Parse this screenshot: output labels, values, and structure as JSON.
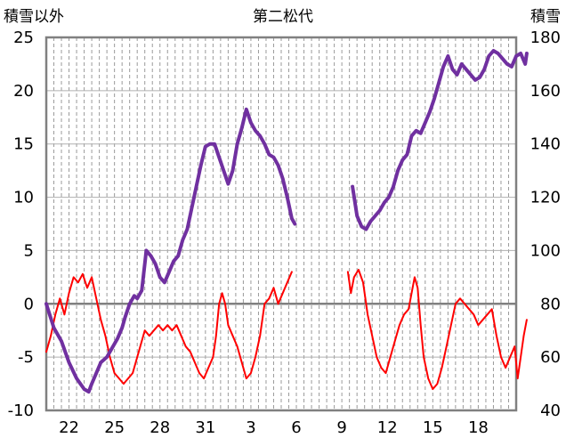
{
  "chart_data": {
    "type": "line",
    "title": "第二松代",
    "ylabel_left": "積雪以外",
    "ylabel_right": "積雪",
    "left_ylim": [
      -10,
      25
    ],
    "right_ylim": [
      40,
      180
    ],
    "left_ticks": [
      "25",
      "20",
      "15",
      "10",
      "5",
      "0",
      "-5",
      "-10"
    ],
    "right_ticks": [
      "180",
      "160",
      "140",
      "120",
      "100",
      "80",
      "60",
      "40"
    ],
    "x_day_range": [
      0,
      31
    ],
    "x_tick_labels": [
      "22",
      "25",
      "28",
      "31",
      "3",
      "6",
      "9",
      "12",
      "15",
      "18"
    ],
    "x_tick_days": [
      1.5,
      4.5,
      7.5,
      10.5,
      13.5,
      16.5,
      19.5,
      22.5,
      25.5,
      28.5
    ],
    "grid": "vertical dashed every 12 hours, horizontal solid at left-axis ticks",
    "colors": {
      "snow_depth": "#7030A0",
      "other": "#FF0000",
      "zero_line": "#808080"
    },
    "series": [
      {
        "axis": "right",
        "color": "#7030A0",
        "points": [
          [
            0.0,
            80
          ],
          [
            0.5,
            71
          ],
          [
            1.0,
            66
          ],
          [
            1.5,
            58
          ],
          [
            2.0,
            52
          ],
          [
            2.5,
            48
          ],
          [
            2.8,
            47
          ],
          [
            3.0,
            50
          ],
          [
            3.3,
            54
          ],
          [
            3.6,
            58
          ],
          [
            4.0,
            60
          ],
          [
            4.3,
            63
          ],
          [
            4.7,
            67
          ],
          [
            5.0,
            71
          ],
          [
            5.2,
            75
          ],
          [
            5.5,
            80
          ],
          [
            5.8,
            83
          ],
          [
            6.0,
            82
          ],
          [
            6.3,
            85
          ],
          [
            6.6,
            100
          ],
          [
            6.9,
            98
          ],
          [
            7.2,
            95
          ],
          [
            7.5,
            90
          ],
          [
            7.8,
            88
          ],
          [
            8.1,
            92
          ],
          [
            8.4,
            96
          ],
          [
            8.7,
            98
          ],
          [
            9.0,
            104
          ],
          [
            9.3,
            108
          ],
          [
            9.6,
            116
          ],
          [
            9.9,
            124
          ],
          [
            10.2,
            132
          ],
          [
            10.5,
            139
          ],
          [
            10.8,
            140
          ],
          [
            11.1,
            140
          ],
          [
            11.4,
            135
          ],
          [
            11.7,
            130
          ],
          [
            12.0,
            125
          ],
          [
            12.3,
            130
          ],
          [
            12.6,
            140
          ],
          [
            12.9,
            146
          ],
          [
            13.2,
            153
          ],
          [
            13.5,
            148
          ],
          [
            13.8,
            145
          ],
          [
            14.1,
            143
          ],
          [
            14.4,
            140
          ],
          [
            14.7,
            136
          ],
          [
            15.0,
            135
          ],
          [
            15.3,
            132
          ],
          [
            15.6,
            127
          ],
          [
            15.9,
            120
          ],
          [
            16.2,
            112
          ],
          [
            16.4,
            110
          ]
        ]
      },
      {
        "axis": "right",
        "color": "#7030A0",
        "points": [
          [
            20.2,
            124
          ],
          [
            20.5,
            113
          ],
          [
            20.8,
            109
          ],
          [
            21.1,
            108
          ],
          [
            21.4,
            111
          ],
          [
            21.7,
            113
          ],
          [
            22.0,
            115
          ],
          [
            22.3,
            118
          ],
          [
            22.6,
            120
          ],
          [
            22.9,
            124
          ],
          [
            23.2,
            130
          ],
          [
            23.5,
            134
          ],
          [
            23.8,
            136
          ],
          [
            24.1,
            143
          ],
          [
            24.4,
            145
          ],
          [
            24.7,
            144
          ],
          [
            25.0,
            148
          ],
          [
            25.3,
            152
          ],
          [
            25.6,
            157
          ],
          [
            25.9,
            163
          ],
          [
            26.2,
            169
          ],
          [
            26.5,
            173
          ],
          [
            26.8,
            168
          ],
          [
            27.1,
            166
          ],
          [
            27.4,
            170
          ],
          [
            27.7,
            168
          ],
          [
            28.0,
            166
          ],
          [
            28.3,
            164
          ],
          [
            28.6,
            165
          ],
          [
            28.9,
            168
          ],
          [
            29.2,
            173
          ],
          [
            29.5,
            175
          ],
          [
            29.8,
            174
          ],
          [
            30.1,
            172
          ],
          [
            30.4,
            170
          ],
          [
            30.7,
            169
          ],
          [
            31.0,
            173
          ],
          [
            31.3,
            174
          ],
          [
            31.6,
            170
          ],
          [
            31.7,
            174
          ]
        ]
      },
      {
        "axis": "left",
        "color": "#FF0000",
        "points": [
          [
            0.0,
            -4.5
          ],
          [
            0.3,
            -3
          ],
          [
            0.6,
            -1
          ],
          [
            0.9,
            0.5
          ],
          [
            1.2,
            -1
          ],
          [
            1.5,
            1
          ],
          [
            1.8,
            2.5
          ],
          [
            2.1,
            2
          ],
          [
            2.4,
            2.8
          ],
          [
            2.7,
            1.5
          ],
          [
            3.0,
            2.5
          ],
          [
            3.3,
            0.5
          ],
          [
            3.6,
            -1.5
          ],
          [
            3.9,
            -3
          ],
          [
            4.2,
            -5
          ],
          [
            4.5,
            -6.5
          ],
          [
            4.8,
            -7
          ],
          [
            5.1,
            -7.5
          ],
          [
            5.4,
            -7
          ],
          [
            5.7,
            -6.5
          ],
          [
            6.0,
            -5
          ],
          [
            6.2,
            -4
          ],
          [
            6.5,
            -2.5
          ],
          [
            6.8,
            -3
          ],
          [
            7.1,
            -2.5
          ],
          [
            7.4,
            -2
          ],
          [
            7.7,
            -2.5
          ],
          [
            8.0,
            -2
          ],
          [
            8.3,
            -2.5
          ],
          [
            8.6,
            -2
          ],
          [
            8.9,
            -3
          ],
          [
            9.2,
            -4
          ],
          [
            9.5,
            -4.5
          ],
          [
            9.8,
            -5.5
          ],
          [
            10.1,
            -6.5
          ],
          [
            10.4,
            -7
          ],
          [
            10.7,
            -6
          ],
          [
            11.0,
            -5
          ],
          [
            11.2,
            -3
          ],
          [
            11.4,
            0
          ],
          [
            11.6,
            1
          ],
          [
            11.8,
            0
          ],
          [
            12.0,
            -2
          ],
          [
            12.3,
            -3
          ],
          [
            12.6,
            -4
          ],
          [
            12.9,
            -5.5
          ],
          [
            13.2,
            -7
          ],
          [
            13.5,
            -6.5
          ],
          [
            13.8,
            -5
          ],
          [
            14.1,
            -3
          ],
          [
            14.4,
            0
          ],
          [
            14.7,
            0.5
          ],
          [
            15.0,
            1.5
          ],
          [
            15.3,
            0
          ],
          [
            15.6,
            1
          ],
          [
            15.9,
            2
          ],
          [
            16.2,
            3
          ]
        ]
      },
      {
        "axis": "left",
        "color": "#FF0000",
        "points": [
          [
            19.9,
            3
          ],
          [
            20.1,
            1
          ],
          [
            20.3,
            2.5
          ],
          [
            20.6,
            3.2
          ],
          [
            20.9,
            2
          ],
          [
            21.2,
            -1
          ],
          [
            21.5,
            -3
          ],
          [
            21.8,
            -5
          ],
          [
            22.1,
            -6
          ],
          [
            22.4,
            -6.5
          ],
          [
            22.7,
            -5
          ],
          [
            23.0,
            -3.5
          ],
          [
            23.3,
            -2
          ],
          [
            23.6,
            -1
          ],
          [
            23.9,
            -0.5
          ],
          [
            24.1,
            1
          ],
          [
            24.3,
            2.5
          ],
          [
            24.5,
            1.5
          ],
          [
            24.7,
            -2
          ],
          [
            24.9,
            -5
          ],
          [
            25.2,
            -7
          ],
          [
            25.5,
            -8
          ],
          [
            25.8,
            -7.5
          ],
          [
            26.1,
            -6
          ],
          [
            26.4,
            -4
          ],
          [
            26.7,
            -2
          ],
          [
            27.0,
            0
          ],
          [
            27.3,
            0.5
          ],
          [
            27.6,
            0
          ],
          [
            27.9,
            -0.5
          ],
          [
            28.2,
            -1
          ],
          [
            28.5,
            -2
          ],
          [
            28.8,
            -1.5
          ],
          [
            29.1,
            -1
          ],
          [
            29.4,
            -0.5
          ],
          [
            29.7,
            -3
          ],
          [
            30.0,
            -5
          ],
          [
            30.3,
            -6
          ],
          [
            30.6,
            -5
          ],
          [
            30.9,
            -4
          ],
          [
            31.1,
            -7
          ],
          [
            31.3,
            -5
          ],
          [
            31.5,
            -3
          ],
          [
            31.7,
            -1.5
          ]
        ]
      }
    ]
  }
}
